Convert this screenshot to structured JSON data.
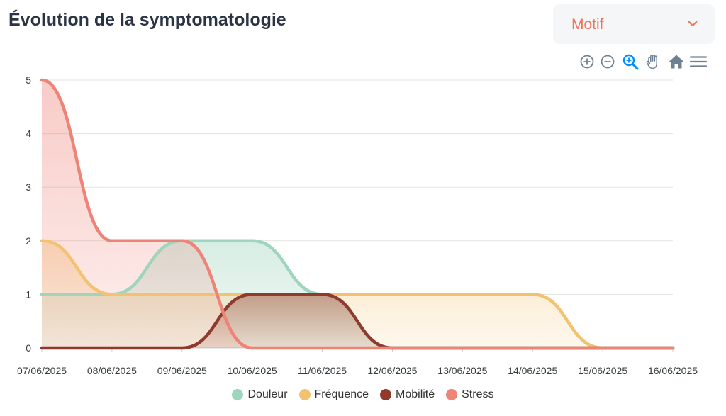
{
  "header": {
    "title": "Évolution de la symptomatologie"
  },
  "filter": {
    "label": "Motif"
  },
  "toolbar": {
    "tools": [
      {
        "name": "zoom-in"
      },
      {
        "name": "zoom-out"
      },
      {
        "name": "selection-zoom"
      },
      {
        "name": "pan"
      },
      {
        "name": "reset-home"
      },
      {
        "name": "menu"
      }
    ]
  },
  "colors": {
    "accent": "#ee7258",
    "toolbar": "#6e8192",
    "toolbar_active": "#008ffb",
    "grid": "#e3e3e3",
    "axis": "#cfcfcf"
  },
  "chart_data": {
    "type": "area",
    "title": "Évolution de la symptomatologie",
    "xlabel": "",
    "ylabel": "",
    "ylim": [
      0,
      5
    ],
    "yticks": [
      "0",
      "1",
      "2",
      "3",
      "4",
      "5"
    ],
    "categories": [
      "07/06/2025",
      "08/06/2025",
      "09/06/2025",
      "10/06/2025",
      "11/06/2025",
      "12/06/2025",
      "13/06/2025",
      "14/06/2025",
      "15/06/2025",
      "16/06/2025"
    ],
    "grid": true,
    "legend_position": "bottom",
    "series": [
      {
        "name": "Douleur",
        "color": "#9fd4bd",
        "values": [
          1,
          1,
          2,
          2,
          1,
          0,
          0,
          0,
          0,
          0
        ]
      },
      {
        "name": "Fréquence",
        "color": "#f3c271",
        "values": [
          2,
          1,
          1,
          1,
          1,
          1,
          1,
          1,
          0,
          0
        ]
      },
      {
        "name": "Mobilité",
        "color": "#8f3a2c",
        "values": [
          0,
          0,
          0,
          1,
          1,
          0,
          0,
          0,
          0,
          0
        ]
      },
      {
        "name": "Stress",
        "color": "#ee8378",
        "values": [
          5,
          2,
          2,
          0,
          0,
          0,
          0,
          0,
          0,
          0
        ]
      }
    ]
  }
}
